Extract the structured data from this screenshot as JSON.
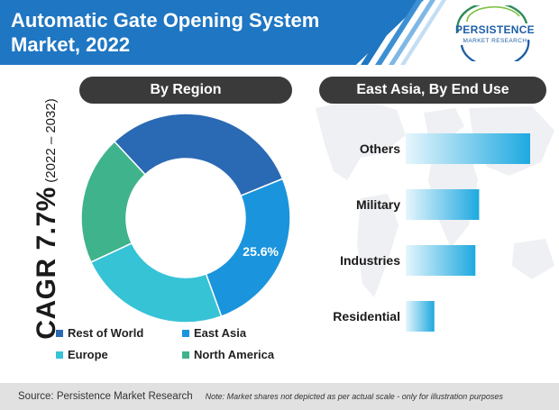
{
  "header": {
    "title_line1": "Automatic Gate Opening System",
    "title_line2": "Market, 2022"
  },
  "logo": {
    "word": "PERSISTENCE",
    "sub": "MARKET RESEARCH"
  },
  "cagr": {
    "main": "CAGR 7.7%",
    "years": "(2022 – 2032)"
  },
  "panels": {
    "left_title": "By Region",
    "right_title": "East Asia, By End Use"
  },
  "footer": {
    "source": "Source: Persistence Market Research",
    "note": "Note: Market shares not depicted as per actual scale - only for illustration purposes"
  },
  "colors": {
    "header_blue": "#1f76c2",
    "rest_of_world": "#2a69b3",
    "east_asia": "#1a94dc",
    "europe": "#37c3d6",
    "north_america": "#3fb38c",
    "pill": "#3a3a3a",
    "bar_dark": "#1ea9e0",
    "bar_light": "#e6f6fc"
  },
  "chart_data": [
    {
      "type": "pie",
      "title": "By Region",
      "categories": [
        "Rest of World",
        "East Asia",
        "Europe",
        "North America"
      ],
      "values": [
        30.8,
        25.6,
        23.6,
        20.0
      ],
      "labels": [
        "",
        "25.6%",
        "",
        ""
      ],
      "legend": "bottom"
    },
    {
      "type": "bar",
      "orientation": "horizontal",
      "title": "East Asia, By End Use",
      "categories": [
        "Others",
        "Military",
        "Industries",
        "Residential"
      ],
      "values": [
        100,
        59,
        56,
        23
      ]
    }
  ]
}
